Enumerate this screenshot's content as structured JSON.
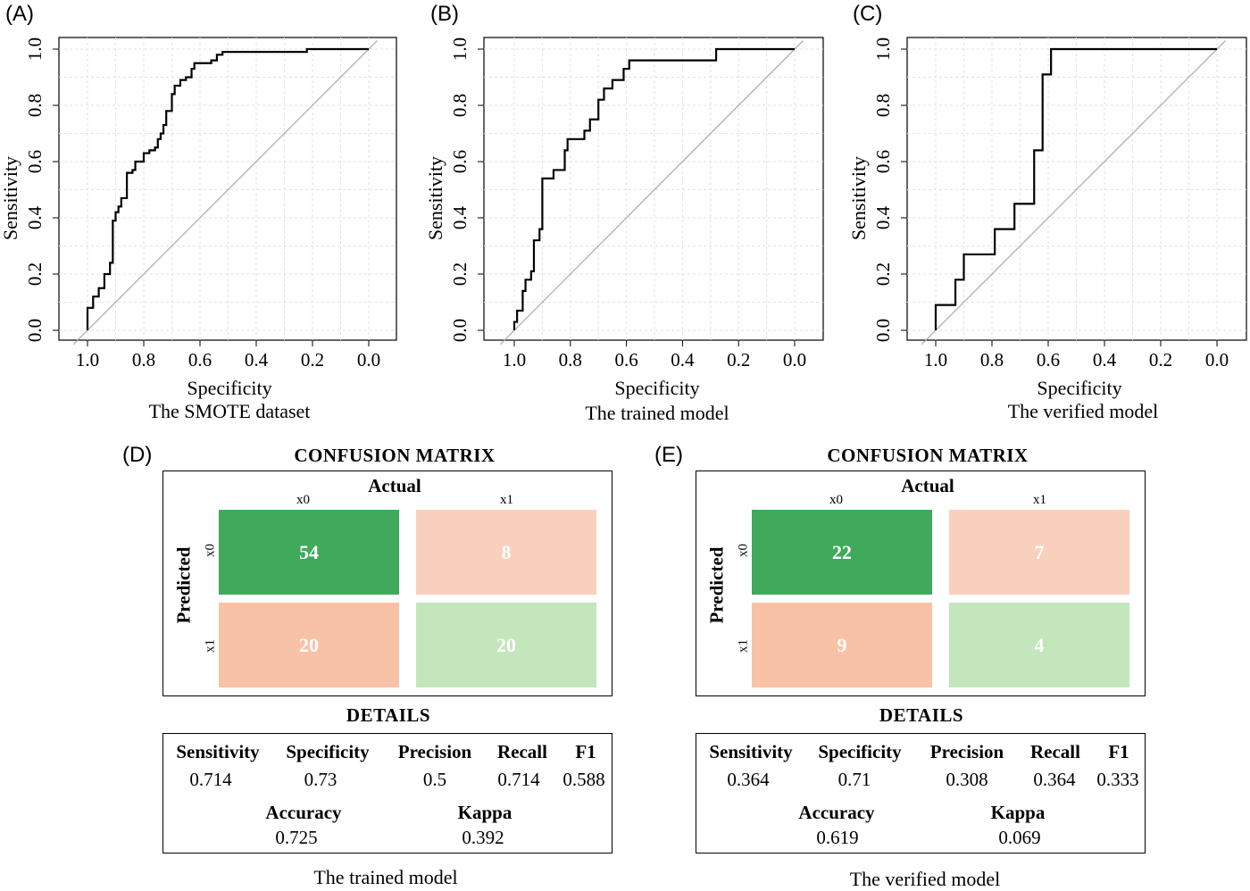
{
  "roc_panels": [
    {
      "tag": "(A)",
      "ylabel": "Sensitivity",
      "xlabel": "Specificity",
      "subtitle": "The SMOTE dataset"
    },
    {
      "tag": "(B)",
      "ylabel": "Sensitivity",
      "xlabel": "Specificity",
      "subtitle": "The trained model"
    },
    {
      "tag": "(C)",
      "ylabel": "Sensitivity",
      "xlabel": "Specificity",
      "subtitle": "The verified model"
    }
  ],
  "ticks": [
    "1.0",
    "0.8",
    "0.6",
    "0.4",
    "0.2",
    "0.0"
  ],
  "ytick_labels": [
    "0.0",
    "0.2",
    "0.4",
    "0.6",
    "0.8",
    "1.0"
  ],
  "cm_panels": [
    {
      "tag": "(D)",
      "title": "CONFUSION MATRIX",
      "actual_label": "Actual",
      "predicted_label": "Predicted",
      "col_labels": [
        "x0",
        "x1"
      ],
      "row_labels": [
        "x0",
        "x1"
      ],
      "cells": [
        "54",
        "8",
        "20",
        "20"
      ],
      "colors": [
        "#3fa95c",
        "#f9d0bd",
        "#f8c2a7",
        "#c3e6bc"
      ],
      "details_title": "DETAILS",
      "metrics": [
        {
          "name": "Sensitivity",
          "value": "0.714"
        },
        {
          "name": "Specificity",
          "value": "0.73"
        },
        {
          "name": "Precision",
          "value": "0.5"
        },
        {
          "name": "Recall",
          "value": "0.714"
        },
        {
          "name": "F1",
          "value": "0.588"
        }
      ],
      "accuracy": {
        "name": "Accuracy",
        "value": "0.725"
      },
      "kappa": {
        "name": "Kappa",
        "value": "0.392"
      },
      "caption": "The trained model"
    },
    {
      "tag": "(E)",
      "title": "CONFUSION MATRIX",
      "actual_label": "Actual",
      "predicted_label": "Predicted",
      "col_labels": [
        "x0",
        "x1"
      ],
      "row_labels": [
        "x0",
        "x1"
      ],
      "cells": [
        "22",
        "7",
        "9",
        "4"
      ],
      "colors": [
        "#3fa95c",
        "#f9d0bd",
        "#f8c2a7",
        "#c3e6bc"
      ],
      "details_title": "DETAILS",
      "metrics": [
        {
          "name": "Sensitivity",
          "value": "0.364"
        },
        {
          "name": "Specificity",
          "value": "0.71"
        },
        {
          "name": "Precision",
          "value": "0.308"
        },
        {
          "name": "Recall",
          "value": "0.364"
        },
        {
          "name": "F1",
          "value": "0.333"
        }
      ],
      "accuracy": {
        "name": "Accuracy",
        "value": "0.619"
      },
      "kappa": {
        "name": "Kappa",
        "value": "0.069"
      },
      "caption": "The verified model"
    }
  ],
  "chart_data": [
    {
      "type": "line",
      "xlabel": "Specificity",
      "ylabel": "Sensitivity",
      "subtitle": "The SMOTE dataset",
      "xlim": [
        1.0,
        0.0
      ],
      "ylim": [
        0.0,
        1.0
      ],
      "grid": true,
      "reference_line": "diagonal",
      "roc": [
        [
          1.0,
          0.0
        ],
        [
          1.0,
          0.08
        ],
        [
          0.98,
          0.08
        ],
        [
          0.98,
          0.12
        ],
        [
          0.96,
          0.12
        ],
        [
          0.96,
          0.15
        ],
        [
          0.94,
          0.15
        ],
        [
          0.94,
          0.2
        ],
        [
          0.92,
          0.2
        ],
        [
          0.92,
          0.24
        ],
        [
          0.91,
          0.24
        ],
        [
          0.91,
          0.39
        ],
        [
          0.9,
          0.39
        ],
        [
          0.9,
          0.42
        ],
        [
          0.89,
          0.42
        ],
        [
          0.89,
          0.44
        ],
        [
          0.88,
          0.44
        ],
        [
          0.88,
          0.47
        ],
        [
          0.86,
          0.47
        ],
        [
          0.86,
          0.56
        ],
        [
          0.84,
          0.56
        ],
        [
          0.84,
          0.57
        ],
        [
          0.83,
          0.57
        ],
        [
          0.83,
          0.6
        ],
        [
          0.8,
          0.6
        ],
        [
          0.8,
          0.63
        ],
        [
          0.78,
          0.63
        ],
        [
          0.78,
          0.64
        ],
        [
          0.76,
          0.64
        ],
        [
          0.76,
          0.65
        ],
        [
          0.75,
          0.65
        ],
        [
          0.75,
          0.68
        ],
        [
          0.74,
          0.68
        ],
        [
          0.74,
          0.7
        ],
        [
          0.73,
          0.7
        ],
        [
          0.73,
          0.73
        ],
        [
          0.72,
          0.73
        ],
        [
          0.72,
          0.78
        ],
        [
          0.7,
          0.78
        ],
        [
          0.7,
          0.84
        ],
        [
          0.69,
          0.84
        ],
        [
          0.69,
          0.87
        ],
        [
          0.67,
          0.87
        ],
        [
          0.67,
          0.89
        ],
        [
          0.65,
          0.89
        ],
        [
          0.65,
          0.9
        ],
        [
          0.63,
          0.9
        ],
        [
          0.63,
          0.93
        ],
        [
          0.62,
          0.93
        ],
        [
          0.62,
          0.95
        ],
        [
          0.56,
          0.95
        ],
        [
          0.56,
          0.96
        ],
        [
          0.54,
          0.96
        ],
        [
          0.54,
          0.98
        ],
        [
          0.52,
          0.98
        ],
        [
          0.52,
          0.99
        ],
        [
          0.22,
          0.99
        ],
        [
          0.22,
          1.0
        ],
        [
          0.0,
          1.0
        ]
      ]
    },
    {
      "type": "line",
      "xlabel": "Specificity",
      "ylabel": "Sensitivity",
      "subtitle": "The trained model",
      "xlim": [
        1.0,
        0.0
      ],
      "ylim": [
        0.0,
        1.0
      ],
      "grid": true,
      "reference_line": "diagonal",
      "roc": [
        [
          1.0,
          0.0
        ],
        [
          1.0,
          0.03
        ],
        [
          0.99,
          0.03
        ],
        [
          0.99,
          0.07
        ],
        [
          0.97,
          0.07
        ],
        [
          0.97,
          0.14
        ],
        [
          0.96,
          0.14
        ],
        [
          0.96,
          0.18
        ],
        [
          0.94,
          0.18
        ],
        [
          0.94,
          0.21
        ],
        [
          0.93,
          0.21
        ],
        [
          0.93,
          0.32
        ],
        [
          0.91,
          0.32
        ],
        [
          0.91,
          0.36
        ],
        [
          0.9,
          0.36
        ],
        [
          0.9,
          0.54
        ],
        [
          0.86,
          0.54
        ],
        [
          0.86,
          0.57
        ],
        [
          0.82,
          0.57
        ],
        [
          0.82,
          0.64
        ],
        [
          0.81,
          0.64
        ],
        [
          0.81,
          0.68
        ],
        [
          0.75,
          0.68
        ],
        [
          0.75,
          0.71
        ],
        [
          0.73,
          0.71
        ],
        [
          0.73,
          0.75
        ],
        [
          0.7,
          0.75
        ],
        [
          0.7,
          0.82
        ],
        [
          0.68,
          0.82
        ],
        [
          0.68,
          0.86
        ],
        [
          0.65,
          0.86
        ],
        [
          0.65,
          0.89
        ],
        [
          0.61,
          0.89
        ],
        [
          0.61,
          0.93
        ],
        [
          0.59,
          0.93
        ],
        [
          0.59,
          0.96
        ],
        [
          0.28,
          0.96
        ],
        [
          0.28,
          1.0
        ],
        [
          0.0,
          1.0
        ]
      ]
    },
    {
      "type": "line",
      "xlabel": "Specificity",
      "ylabel": "Sensitivity",
      "subtitle": "The verified model",
      "xlim": [
        1.0,
        0.0
      ],
      "ylim": [
        0.0,
        1.0
      ],
      "grid": true,
      "reference_line": "diagonal",
      "roc": [
        [
          1.0,
          0.0
        ],
        [
          1.0,
          0.09
        ],
        [
          0.93,
          0.09
        ],
        [
          0.93,
          0.18
        ],
        [
          0.9,
          0.18
        ],
        [
          0.9,
          0.27
        ],
        [
          0.79,
          0.27
        ],
        [
          0.79,
          0.36
        ],
        [
          0.72,
          0.36
        ],
        [
          0.72,
          0.45
        ],
        [
          0.65,
          0.45
        ],
        [
          0.65,
          0.64
        ],
        [
          0.62,
          0.64
        ],
        [
          0.62,
          0.91
        ],
        [
          0.59,
          0.91
        ],
        [
          0.59,
          1.0
        ],
        [
          0.0,
          1.0
        ]
      ]
    },
    {
      "type": "table",
      "title": "CONFUSION MATRIX",
      "columns": [
        "x0",
        "x1"
      ],
      "rows": [
        "x0",
        "x1"
      ],
      "values": [
        [
          54,
          8
        ],
        [
          20,
          20
        ]
      ]
    },
    {
      "type": "table",
      "title": "CONFUSION MATRIX",
      "columns": [
        "x0",
        "x1"
      ],
      "rows": [
        "x0",
        "x1"
      ],
      "values": [
        [
          22,
          7
        ],
        [
          9,
          4
        ]
      ]
    }
  ]
}
